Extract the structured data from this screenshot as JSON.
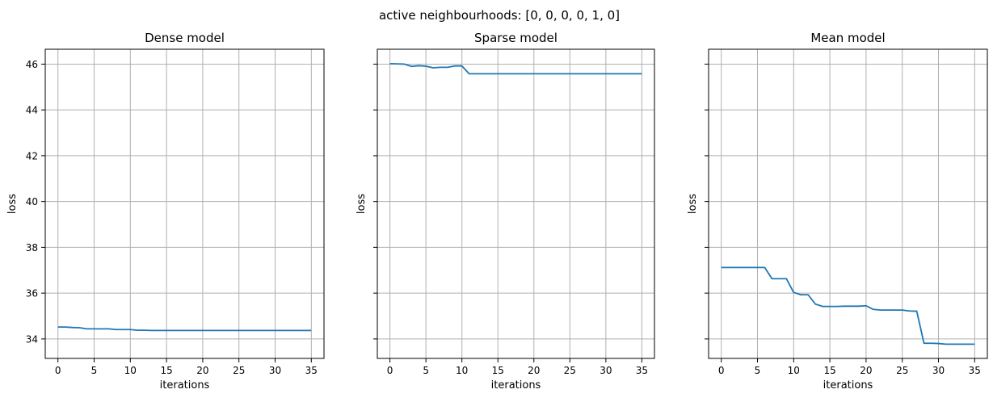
{
  "suptitle": "active neighbourhoods: [0, 0, 0, 0, 1, 0]",
  "colors": {
    "series": "#1f77b4",
    "grid": "#b0b0b0"
  },
  "chart_data": [
    {
      "type": "line",
      "title": "Dense model",
      "xlabel": "iterations",
      "ylabel": "loss",
      "xlim": [
        -1.75,
        36.75
      ],
      "ylim": [
        33.15,
        46.65
      ],
      "xticks": [
        0,
        5,
        10,
        15,
        20,
        25,
        30,
        35
      ],
      "yticks": [
        34,
        36,
        38,
        40,
        42,
        44,
        46
      ],
      "show_yticklabels": true,
      "grid": true,
      "x": [
        0,
        1,
        2,
        3,
        4,
        5,
        6,
        7,
        8,
        9,
        10,
        11,
        12,
        13,
        14,
        15,
        16,
        17,
        18,
        19,
        20,
        21,
        22,
        23,
        24,
        25,
        26,
        27,
        28,
        29,
        30,
        31,
        32,
        33,
        34,
        35
      ],
      "y": [
        34.52,
        34.52,
        34.5,
        34.49,
        34.44,
        34.44,
        34.44,
        34.44,
        34.41,
        34.41,
        34.41,
        34.38,
        34.38,
        34.37,
        34.37,
        34.37,
        34.37,
        34.37,
        34.37,
        34.37,
        34.37,
        34.37,
        34.37,
        34.37,
        34.37,
        34.37,
        34.37,
        34.37,
        34.37,
        34.37,
        34.37,
        34.37,
        34.37,
        34.37,
        34.37,
        34.37
      ]
    },
    {
      "type": "line",
      "title": "Sparse model",
      "xlabel": "iterations",
      "ylabel": "loss",
      "xlim": [
        -1.75,
        36.75
      ],
      "ylim": [
        33.15,
        46.65
      ],
      "xticks": [
        0,
        5,
        10,
        15,
        20,
        25,
        30,
        35
      ],
      "yticks": [
        34,
        36,
        38,
        40,
        42,
        44,
        46
      ],
      "show_yticklabels": false,
      "grid": true,
      "x": [
        0,
        1,
        2,
        3,
        4,
        5,
        6,
        7,
        8,
        9,
        10,
        11,
        12,
        13,
        14,
        15,
        16,
        17,
        18,
        19,
        20,
        21,
        22,
        23,
        24,
        25,
        26,
        27,
        28,
        29,
        30,
        31,
        32,
        33,
        34,
        35
      ],
      "y": [
        46.02,
        46.01,
        46.0,
        45.9,
        45.93,
        45.91,
        45.84,
        45.86,
        45.86,
        45.92,
        45.92,
        45.58,
        45.58,
        45.58,
        45.58,
        45.58,
        45.58,
        45.58,
        45.58,
        45.58,
        45.58,
        45.58,
        45.58,
        45.58,
        45.58,
        45.58,
        45.58,
        45.58,
        45.58,
        45.58,
        45.58,
        45.58,
        45.58,
        45.58,
        45.58,
        45.58
      ]
    },
    {
      "type": "line",
      "title": "Mean model",
      "xlabel": "iterations",
      "ylabel": "loss",
      "xlim": [
        -1.75,
        36.75
      ],
      "ylim": [
        33.15,
        46.65
      ],
      "xticks": [
        0,
        5,
        10,
        15,
        20,
        25,
        30,
        35
      ],
      "yticks": [
        34,
        36,
        38,
        40,
        42,
        44,
        46
      ],
      "show_yticklabels": false,
      "grid": true,
      "x": [
        0,
        1,
        2,
        3,
        4,
        5,
        6,
        7,
        8,
        9,
        10,
        11,
        12,
        13,
        14,
        15,
        16,
        17,
        18,
        19,
        20,
        21,
        22,
        23,
        24,
        25,
        26,
        27,
        28,
        29,
        30,
        31,
        32,
        33,
        34,
        35
      ],
      "y": [
        37.12,
        37.12,
        37.12,
        37.12,
        37.12,
        37.12,
        37.12,
        36.63,
        36.63,
        36.63,
        36.03,
        35.93,
        35.93,
        35.52,
        35.42,
        35.42,
        35.42,
        35.43,
        35.43,
        35.43,
        35.45,
        35.29,
        35.26,
        35.26,
        35.26,
        35.26,
        35.22,
        35.21,
        33.81,
        33.81,
        33.8,
        33.77,
        33.77,
        33.77,
        33.77,
        33.77
      ]
    }
  ]
}
